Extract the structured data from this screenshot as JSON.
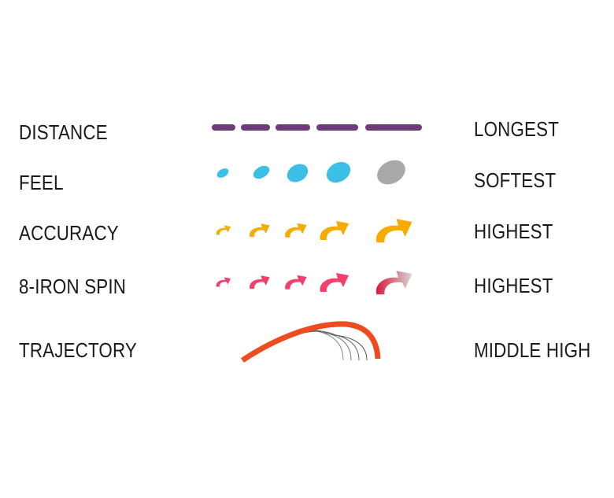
{
  "rows": [
    {
      "label": "DISTANCE",
      "rating": "LONGEST"
    },
    {
      "label": "FEEL",
      "rating": "SOFTEST"
    },
    {
      "label": "ACCURACY",
      "rating": "HIGHEST"
    },
    {
      "label": "8-IRON SPIN",
      "rating": "HIGHEST"
    },
    {
      "label": "TRAJECTORY",
      "rating": "MIDDLE HIGH"
    }
  ],
  "colors": {
    "distance": "#6f3b7b",
    "feel": "#3bbfe6",
    "feel_selected": "#a9a9a9",
    "accuracy": "#f5ab00",
    "spin": "#f43f6c",
    "spin_selected_start": "#d91a3a",
    "spin_selected_end": "#d6d6d6",
    "trajectory": "#ee4b1f",
    "trajectory_others": "#555555"
  }
}
